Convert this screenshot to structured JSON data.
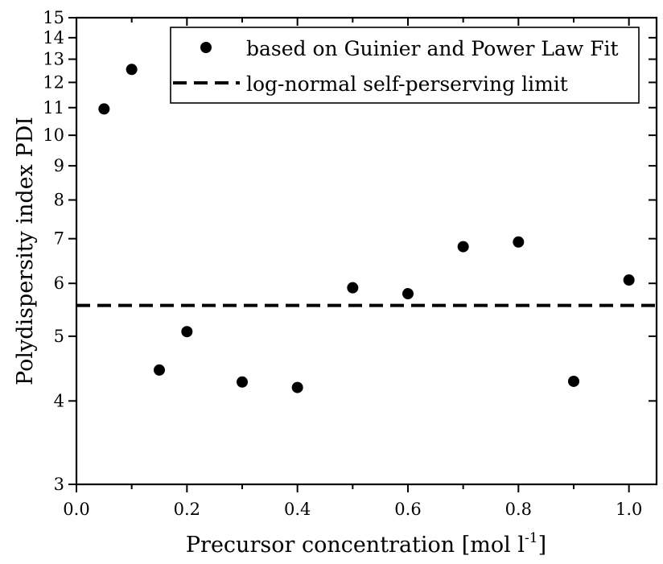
{
  "chart_data": {
    "type": "scatter",
    "title": "",
    "xlabel": "Precursor concentration [mol l",
    "xlabel_sup": "-1",
    "xlabel_end": "]",
    "ylabel": "Polydispersity index PDI",
    "xlim": [
      0.0,
      1.05
    ],
    "ylim": [
      3,
      15
    ],
    "yscale": "log",
    "x_ticks": [
      0.0,
      0.2,
      0.4,
      0.6,
      0.8,
      1.0
    ],
    "x_tick_labels": [
      "0.0",
      "0.2",
      "0.4",
      "0.6",
      "0.8",
      "1.0"
    ],
    "y_ticks": [
      3,
      4,
      5,
      6,
      7,
      8,
      9,
      10,
      11,
      12,
      13,
      14,
      15
    ],
    "y_tick_labels": [
      "3",
      "4",
      "5",
      "6",
      "7",
      "8",
      "9",
      "10",
      "11",
      "12",
      "13",
      "14",
      "15"
    ],
    "series": [
      {
        "name": "based on Guinier and Power Law Fit",
        "style": "marker",
        "x": [
          0.05,
          0.1,
          0.15,
          0.2,
          0.3,
          0.4,
          0.5,
          0.6,
          0.7,
          0.8,
          0.9,
          1.0
        ],
        "y": [
          10.95,
          12.55,
          4.45,
          5.08,
          4.27,
          4.19,
          5.91,
          5.79,
          6.81,
          6.92,
          4.28,
          6.07
        ]
      },
      {
        "name": "log-normal self-perserving limit",
        "style": "dashed-line",
        "x": [
          0.0,
          1.05
        ],
        "y": [
          5.56,
          5.56
        ]
      }
    ],
    "legend_position": "top-right"
  },
  "colors": {
    "foreground": "#000000",
    "background": "#ffffff"
  }
}
